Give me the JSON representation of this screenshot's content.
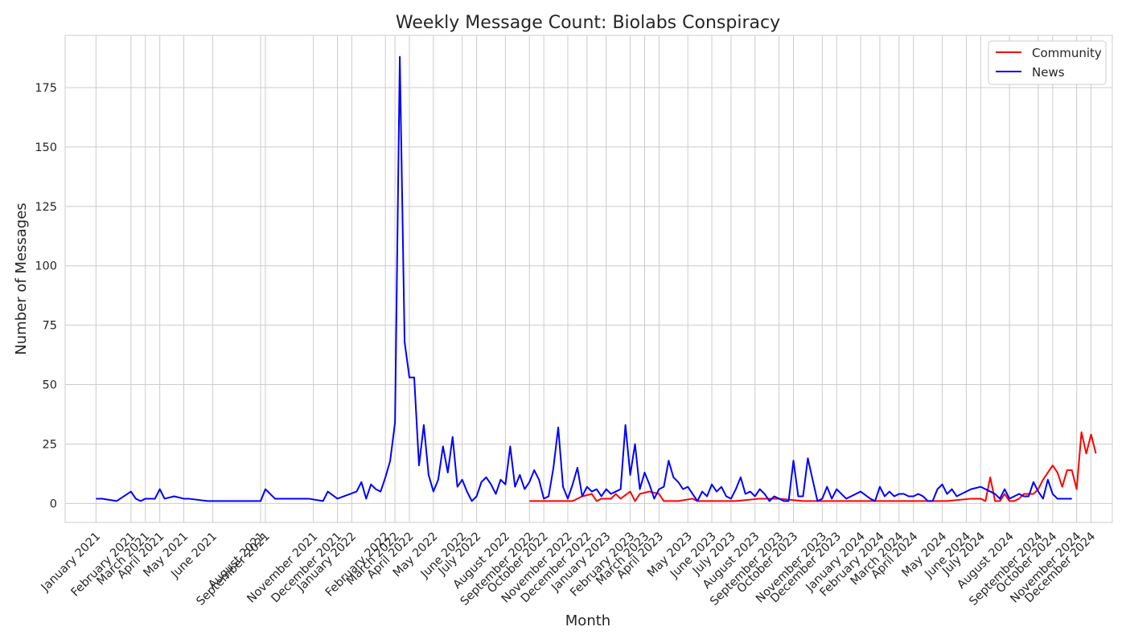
{
  "chart_data": {
    "type": "line",
    "title": "Weekly Message Count: Biolabs Conspiracy",
    "xlabel": "Month",
    "ylabel": "Number of Messages",
    "ylim": [
      -8,
      197
    ],
    "xlim": [
      "2020-11-17",
      "2025-01-22"
    ],
    "y_ticks": [
      0,
      25,
      50,
      75,
      100,
      125,
      150,
      175
    ],
    "x_ticks": [
      {
        "date": "2021-01-01",
        "label": "January 2021"
      },
      {
        "date": "2021-02-21",
        "label": "February 2021"
      },
      {
        "date": "2021-03-14",
        "label": "March 2021"
      },
      {
        "date": "2021-04-04",
        "label": "April 2021"
      },
      {
        "date": "2021-05-09",
        "label": "May 2021"
      },
      {
        "date": "2021-06-20",
        "label": "June 2021"
      },
      {
        "date": "2021-08-29",
        "label": "August 2021"
      },
      {
        "date": "2021-09-05",
        "label": "September 2021"
      },
      {
        "date": "2021-11-14",
        "label": "November 2021"
      },
      {
        "date": "2021-12-19",
        "label": "December 2021"
      },
      {
        "date": "2022-01-09",
        "label": "January 2022"
      },
      {
        "date": "2022-02-27",
        "label": "February 2022"
      },
      {
        "date": "2022-03-13",
        "label": "March 2022"
      },
      {
        "date": "2022-04-03",
        "label": "April 2022"
      },
      {
        "date": "2022-05-08",
        "label": "May 2022"
      },
      {
        "date": "2022-06-19",
        "label": "June 2022"
      },
      {
        "date": "2022-07-10",
        "label": "July 2022"
      },
      {
        "date": "2022-08-21",
        "label": "August 2022"
      },
      {
        "date": "2022-09-25",
        "label": "September 2022"
      },
      {
        "date": "2022-10-16",
        "label": "October 2022"
      },
      {
        "date": "2022-11-20",
        "label": "November 2022"
      },
      {
        "date": "2022-12-18",
        "label": "December 2022"
      },
      {
        "date": "2023-01-15",
        "label": "January 2023"
      },
      {
        "date": "2023-02-19",
        "label": "February 2023"
      },
      {
        "date": "2023-03-12",
        "label": "March 2023"
      },
      {
        "date": "2023-04-02",
        "label": "April 2023"
      },
      {
        "date": "2023-05-14",
        "label": "May 2023"
      },
      {
        "date": "2023-06-18",
        "label": "June 2023"
      },
      {
        "date": "2023-07-16",
        "label": "July 2023"
      },
      {
        "date": "2023-08-20",
        "label": "August 2023"
      },
      {
        "date": "2023-09-24",
        "label": "September 2023"
      },
      {
        "date": "2023-10-15",
        "label": "October 2023"
      },
      {
        "date": "2023-11-26",
        "label": "November 2023"
      },
      {
        "date": "2023-12-17",
        "label": "December 2023"
      },
      {
        "date": "2024-01-21",
        "label": "January 2024"
      },
      {
        "date": "2024-02-18",
        "label": "February 2024"
      },
      {
        "date": "2024-03-17",
        "label": "March 2024"
      },
      {
        "date": "2024-04-07",
        "label": "April 2024"
      },
      {
        "date": "2024-05-19",
        "label": "May 2024"
      },
      {
        "date": "2024-06-23",
        "label": "June 2024"
      },
      {
        "date": "2024-07-14",
        "label": "July 2024"
      },
      {
        "date": "2024-08-25",
        "label": "August 2024"
      },
      {
        "date": "2024-10-06",
        "label": "September 2024"
      },
      {
        "date": "2024-10-27",
        "label": "October 2024"
      },
      {
        "date": "2024-12-01",
        "label": "November 2024"
      },
      {
        "date": "2024-12-22",
        "label": "December 2024"
      }
    ],
    "grid": true,
    "legend_position": "top-right",
    "series": [
      {
        "name": "Community",
        "color": "#ff0000",
        "points": [
          [
            "2022-09-25",
            1
          ],
          [
            "2022-10-09",
            1
          ],
          [
            "2022-10-23",
            1
          ],
          [
            "2022-11-13",
            1
          ],
          [
            "2022-11-27",
            1
          ],
          [
            "2022-12-11",
            3
          ],
          [
            "2022-12-25",
            4
          ],
          [
            "2023-01-01",
            1
          ],
          [
            "2023-01-08",
            2
          ],
          [
            "2023-01-22",
            2
          ],
          [
            "2023-01-29",
            4
          ],
          [
            "2023-02-05",
            2
          ],
          [
            "2023-02-19",
            5
          ],
          [
            "2023-02-26",
            1
          ],
          [
            "2023-03-05",
            4
          ],
          [
            "2023-03-19",
            5
          ],
          [
            "2023-04-02",
            4
          ],
          [
            "2023-04-09",
            1
          ],
          [
            "2023-04-30",
            1
          ],
          [
            "2023-05-21",
            2
          ],
          [
            "2023-05-28",
            1
          ],
          [
            "2023-07-02",
            1
          ],
          [
            "2023-07-23",
            1
          ],
          [
            "2023-08-27",
            2
          ],
          [
            "2023-09-24",
            2
          ],
          [
            "2023-10-29",
            1
          ],
          [
            "2023-12-03",
            1
          ],
          [
            "2024-01-07",
            1
          ],
          [
            "2024-02-11",
            1
          ],
          [
            "2024-03-17",
            1
          ],
          [
            "2024-04-21",
            1
          ],
          [
            "2024-05-26",
            1
          ],
          [
            "2024-06-30",
            2
          ],
          [
            "2024-07-14",
            2
          ],
          [
            "2024-07-21",
            1
          ],
          [
            "2024-07-28",
            11
          ],
          [
            "2024-08-04",
            1
          ],
          [
            "2024-08-11",
            1
          ],
          [
            "2024-08-18",
            4
          ],
          [
            "2024-08-25",
            1
          ],
          [
            "2024-09-01",
            1
          ],
          [
            "2024-09-08",
            2
          ],
          [
            "2024-09-15",
            4
          ],
          [
            "2024-09-22",
            4
          ],
          [
            "2024-09-29",
            4
          ],
          [
            "2024-10-06",
            6
          ],
          [
            "2024-10-13",
            10
          ],
          [
            "2024-10-20",
            13
          ],
          [
            "2024-10-27",
            16
          ],
          [
            "2024-11-03",
            13
          ],
          [
            "2024-11-10",
            7
          ],
          [
            "2024-11-17",
            14
          ],
          [
            "2024-11-24",
            14
          ],
          [
            "2024-12-01",
            6
          ],
          [
            "2024-12-08",
            30
          ],
          [
            "2024-12-15",
            21
          ],
          [
            "2024-12-22",
            29
          ],
          [
            "2024-12-29",
            21
          ]
        ]
      },
      {
        "name": "News",
        "color": "#0000ff",
        "points": [
          [
            "2021-01-01",
            2
          ],
          [
            "2021-01-10",
            2
          ],
          [
            "2021-01-31",
            1
          ],
          [
            "2021-02-21",
            5
          ],
          [
            "2021-02-28",
            2
          ],
          [
            "2021-03-07",
            1
          ],
          [
            "2021-03-14",
            2
          ],
          [
            "2021-03-28",
            2
          ],
          [
            "2021-04-04",
            6
          ],
          [
            "2021-04-11",
            2
          ],
          [
            "2021-04-25",
            3
          ],
          [
            "2021-05-09",
            2
          ],
          [
            "2021-05-16",
            2
          ],
          [
            "2021-06-13",
            1
          ],
          [
            "2021-08-15",
            1
          ],
          [
            "2021-08-29",
            1
          ],
          [
            "2021-09-05",
            6
          ],
          [
            "2021-09-19",
            2
          ],
          [
            "2021-11-07",
            2
          ],
          [
            "2021-11-28",
            1
          ],
          [
            "2021-12-05",
            5
          ],
          [
            "2021-12-19",
            2
          ],
          [
            "2022-01-16",
            5
          ],
          [
            "2022-01-23",
            9
          ],
          [
            "2022-01-30",
            2
          ],
          [
            "2022-02-06",
            8
          ],
          [
            "2022-02-13",
            6
          ],
          [
            "2022-02-20",
            5
          ],
          [
            "2022-02-27",
            11
          ],
          [
            "2022-03-06",
            18
          ],
          [
            "2022-03-13",
            34
          ],
          [
            "2022-03-20",
            188
          ],
          [
            "2022-03-27",
            68
          ],
          [
            "2022-04-03",
            53
          ],
          [
            "2022-04-10",
            53
          ],
          [
            "2022-04-17",
            16
          ],
          [
            "2022-04-24",
            33
          ],
          [
            "2022-05-01",
            12
          ],
          [
            "2022-05-08",
            5
          ],
          [
            "2022-05-15",
            10
          ],
          [
            "2022-05-22",
            24
          ],
          [
            "2022-05-29",
            13
          ],
          [
            "2022-06-05",
            28
          ],
          [
            "2022-06-12",
            7
          ],
          [
            "2022-06-19",
            10
          ],
          [
            "2022-06-26",
            5
          ],
          [
            "2022-07-03",
            1
          ],
          [
            "2022-07-10",
            3
          ],
          [
            "2022-07-17",
            9
          ],
          [
            "2022-07-24",
            11
          ],
          [
            "2022-07-31",
            8
          ],
          [
            "2022-08-07",
            4
          ],
          [
            "2022-08-14",
            10
          ],
          [
            "2022-08-21",
            8
          ],
          [
            "2022-08-28",
            24
          ],
          [
            "2022-09-04",
            7
          ],
          [
            "2022-09-11",
            12
          ],
          [
            "2022-09-18",
            6
          ],
          [
            "2022-09-25",
            9
          ],
          [
            "2022-10-02",
            14
          ],
          [
            "2022-10-09",
            10
          ],
          [
            "2022-10-16",
            2
          ],
          [
            "2022-10-23",
            3
          ],
          [
            "2022-10-30",
            15
          ],
          [
            "2022-11-06",
            32
          ],
          [
            "2022-11-13",
            7
          ],
          [
            "2022-11-20",
            2
          ],
          [
            "2022-11-27",
            8
          ],
          [
            "2022-12-04",
            15
          ],
          [
            "2022-12-11",
            3
          ],
          [
            "2022-12-18",
            7
          ],
          [
            "2022-12-25",
            5
          ],
          [
            "2023-01-01",
            6
          ],
          [
            "2023-01-08",
            3
          ],
          [
            "2023-01-15",
            6
          ],
          [
            "2023-01-22",
            4
          ],
          [
            "2023-01-29",
            5
          ],
          [
            "2023-02-05",
            6
          ],
          [
            "2023-02-12",
            33
          ],
          [
            "2023-02-19",
            12
          ],
          [
            "2023-02-26",
            25
          ],
          [
            "2023-03-05",
            6
          ],
          [
            "2023-03-12",
            13
          ],
          [
            "2023-03-19",
            8
          ],
          [
            "2023-03-26",
            2
          ],
          [
            "2023-04-02",
            6
          ],
          [
            "2023-04-09",
            7
          ],
          [
            "2023-04-16",
            18
          ],
          [
            "2023-04-23",
            11
          ],
          [
            "2023-04-30",
            9
          ],
          [
            "2023-05-07",
            6
          ],
          [
            "2023-05-14",
            7
          ],
          [
            "2023-05-21",
            4
          ],
          [
            "2023-05-28",
            1
          ],
          [
            "2023-06-04",
            5
          ],
          [
            "2023-06-11",
            3
          ],
          [
            "2023-06-18",
            8
          ],
          [
            "2023-06-25",
            5
          ],
          [
            "2023-07-02",
            7
          ],
          [
            "2023-07-09",
            3
          ],
          [
            "2023-07-16",
            2
          ],
          [
            "2023-07-23",
            6
          ],
          [
            "2023-07-30",
            11
          ],
          [
            "2023-08-06",
            4
          ],
          [
            "2023-08-13",
            5
          ],
          [
            "2023-08-20",
            3
          ],
          [
            "2023-08-27",
            6
          ],
          [
            "2023-09-03",
            4
          ],
          [
            "2023-09-10",
            1
          ],
          [
            "2023-09-17",
            3
          ],
          [
            "2023-09-24",
            2
          ],
          [
            "2023-10-01",
            1
          ],
          [
            "2023-10-08",
            1
          ],
          [
            "2023-10-15",
            18
          ],
          [
            "2023-10-22",
            3
          ],
          [
            "2023-10-29",
            3
          ],
          [
            "2023-11-05",
            19
          ],
          [
            "2023-11-12",
            10
          ],
          [
            "2023-11-19",
            1
          ],
          [
            "2023-11-26",
            2
          ],
          [
            "2023-12-03",
            7
          ],
          [
            "2023-12-10",
            2
          ],
          [
            "2023-12-17",
            6
          ],
          [
            "2023-12-24",
            4
          ],
          [
            "2023-12-31",
            2
          ],
          [
            "2024-01-07",
            3
          ],
          [
            "2024-01-21",
            5
          ],
          [
            "2024-02-04",
            2
          ],
          [
            "2024-02-11",
            1
          ],
          [
            "2024-02-18",
            7
          ],
          [
            "2024-02-25",
            3
          ],
          [
            "2024-03-03",
            5
          ],
          [
            "2024-03-10",
            3
          ],
          [
            "2024-03-17",
            4
          ],
          [
            "2024-03-24",
            4
          ],
          [
            "2024-03-31",
            3
          ],
          [
            "2024-04-07",
            3
          ],
          [
            "2024-04-14",
            4
          ],
          [
            "2024-04-21",
            3
          ],
          [
            "2024-04-28",
            1
          ],
          [
            "2024-05-05",
            1
          ],
          [
            "2024-05-12",
            6
          ],
          [
            "2024-05-19",
            8
          ],
          [
            "2024-05-26",
            4
          ],
          [
            "2024-06-02",
            6
          ],
          [
            "2024-06-09",
            3
          ],
          [
            "2024-06-16",
            4
          ],
          [
            "2024-06-23",
            5
          ],
          [
            "2024-06-30",
            6
          ],
          [
            "2024-07-14",
            7
          ],
          [
            "2024-07-28",
            5
          ],
          [
            "2024-08-04",
            4
          ],
          [
            "2024-08-11",
            2
          ],
          [
            "2024-08-18",
            6
          ],
          [
            "2024-08-25",
            2
          ],
          [
            "2024-09-01",
            3
          ],
          [
            "2024-09-08",
            4
          ],
          [
            "2024-09-15",
            3
          ],
          [
            "2024-09-22",
            3
          ],
          [
            "2024-09-29",
            9
          ],
          [
            "2024-10-06",
            5
          ],
          [
            "2024-10-13",
            2
          ],
          [
            "2024-10-20",
            10
          ],
          [
            "2024-10-27",
            4
          ],
          [
            "2024-11-03",
            2
          ],
          [
            "2024-11-10",
            2
          ],
          [
            "2024-11-17",
            2
          ],
          [
            "2024-11-24",
            2
          ]
        ]
      }
    ]
  }
}
